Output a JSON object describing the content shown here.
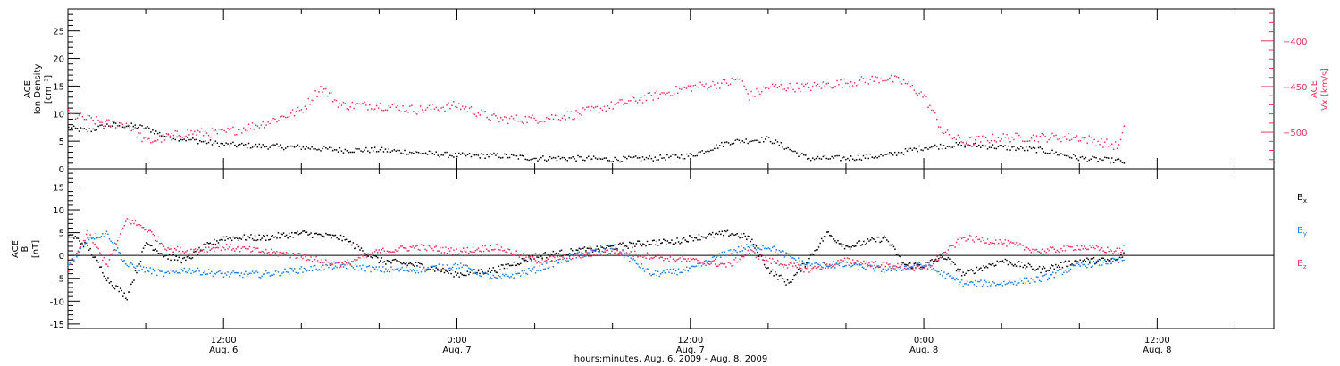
{
  "time_axis": {
    "tick_times": [
      "12:00",
      "0:00",
      "12:00",
      "0:00",
      "12:00"
    ],
    "tick_dates": [
      "Aug. 6",
      "Aug. 7",
      "Aug. 7",
      "Aug. 8",
      "Aug. 8"
    ],
    "tick_hours": [
      12,
      24,
      36,
      48,
      60
    ],
    "range_hours": [
      4,
      66
    ],
    "minor_step_hours": 4,
    "xlabel": "hours:minutes, Aug.  6, 2009 - Aug.  8, 2009"
  },
  "colors": {
    "black": "#000000",
    "pink": "#e8365f",
    "blue": "#1f7fe0"
  },
  "chart_data": [
    {
      "type": "scatter",
      "panel": "top",
      "ylabel_left": [
        "ACE",
        "Ion Density",
        "[cm⁻³]"
      ],
      "ylabel_right": [
        "ACE",
        "Vx [km/s]"
      ],
      "ylim_left": [
        0,
        29
      ],
      "ylim_right": [
        -540,
        -365
      ],
      "yticks_left": [
        0,
        5,
        10,
        15,
        20,
        25
      ],
      "yticks_right": [
        -500,
        -450,
        -400
      ],
      "series": [
        {
          "axis": "left",
          "color": "#000000",
          "x": [
            4,
            5,
            6,
            7,
            8,
            9,
            10,
            11,
            12,
            14,
            16,
            18,
            20,
            22,
            24,
            26,
            28,
            30,
            32,
            34,
            36,
            38,
            40,
            42,
            44,
            46,
            48,
            50,
            52,
            54,
            56,
            58,
            58.3
          ],
          "y": [
            7.5,
            7,
            8,
            8,
            7.5,
            6,
            5.5,
            5,
            4.5,
            4.2,
            4,
            3.5,
            3.5,
            3,
            2.5,
            2.5,
            2,
            2,
            1.8,
            2,
            2.5,
            5,
            5.5,
            2,
            2,
            2.5,
            4,
            4.5,
            4,
            3.5,
            2,
            1.5,
            1.3
          ]
        },
        {
          "axis": "right",
          "color": "#e8365f",
          "x": [
            4,
            5,
            6,
            7,
            8,
            9,
            10,
            12,
            14,
            16,
            17,
            18,
            20,
            22,
            24,
            26,
            28,
            30,
            32,
            34,
            36,
            38,
            38.5,
            39,
            40,
            42,
            44,
            46,
            47,
            48,
            49,
            50,
            52,
            54,
            56,
            58,
            58.3
          ],
          "y": [
            -480,
            -485,
            -490,
            -490,
            -510,
            -505,
            -500,
            -500,
            -490,
            -475,
            -450,
            -470,
            -470,
            -475,
            -470,
            -485,
            -485,
            -480,
            -470,
            -460,
            -450,
            -445,
            -440,
            -460,
            -450,
            -450,
            -445,
            -440,
            -445,
            -460,
            -500,
            -510,
            -505,
            -505,
            -505,
            -515,
            -495
          ]
        }
      ]
    },
    {
      "type": "scatter",
      "panel": "bottom",
      "ylabel_left": [
        "ACE",
        "B",
        "[nT]"
      ],
      "ylim": [
        -16,
        19
      ],
      "yticks": [
        -15,
        -10,
        -5,
        0,
        5,
        10,
        15
      ],
      "zero_line": true,
      "series": [
        {
          "name": "Bx",
          "color": "#000000",
          "x": [
            4,
            5,
            6,
            7,
            8,
            9,
            10,
            11,
            12,
            14,
            16,
            18,
            20,
            22,
            24,
            26,
            28,
            30,
            32,
            34,
            35,
            36,
            38,
            39,
            40,
            41,
            42,
            43,
            44,
            46,
            47,
            48,
            49,
            50,
            52,
            54,
            56,
            58,
            58.3
          ],
          "y": [
            5,
            2,
            -5,
            -9,
            3,
            0,
            -1,
            2,
            4,
            4,
            5,
            4,
            -1,
            -2,
            -4,
            -3,
            0,
            1,
            2,
            3,
            3,
            4,
            5,
            4,
            -3,
            -6,
            -1,
            5,
            2,
            4,
            -2,
            -2,
            0,
            -4,
            -1,
            -3,
            -1,
            -1,
            1
          ]
        },
        {
          "name": "By",
          "color": "#1f7fe0",
          "x": [
            4,
            5,
            6,
            7,
            8,
            9,
            10,
            12,
            14,
            16,
            18,
            20,
            22,
            24,
            26,
            28,
            30,
            32,
            34,
            36,
            38,
            39,
            40,
            42,
            44,
            46,
            48,
            50,
            52,
            54,
            56,
            58,
            58.3
          ],
          "y": [
            -2,
            4,
            5,
            -2,
            -3,
            -4,
            -3,
            -4,
            -4,
            -3,
            -2,
            -3,
            -3,
            -2,
            -5,
            -3,
            0,
            2,
            -4,
            -3,
            1,
            2,
            2,
            -2,
            -2,
            -3,
            -2,
            -6,
            -6,
            -5,
            -2,
            -1,
            -1
          ]
        },
        {
          "name": "Bz",
          "color": "#e8365f",
          "x": [
            4,
            5,
            6,
            7,
            8,
            9,
            10,
            12,
            14,
            16,
            18,
            20,
            22,
            24,
            26,
            28,
            30,
            32,
            34,
            36,
            38,
            39,
            40,
            42,
            44,
            46,
            48,
            50,
            52,
            54,
            56,
            58,
            58.3
          ],
          "y": [
            -3,
            5,
            -2,
            8,
            6,
            2,
            1,
            2,
            1,
            0,
            -2,
            1,
            2,
            1,
            2,
            -1,
            0,
            1,
            0,
            -1,
            -2,
            1,
            -1,
            -3,
            -1,
            -2,
            -3,
            4,
            3,
            1,
            2,
            1,
            2
          ]
        }
      ],
      "legend": {
        "placement": "right",
        "entries": [
          "B",
          "B",
          "B"
        ],
        "subscripts": [
          "x",
          "y",
          "z"
        ]
      }
    }
  ]
}
